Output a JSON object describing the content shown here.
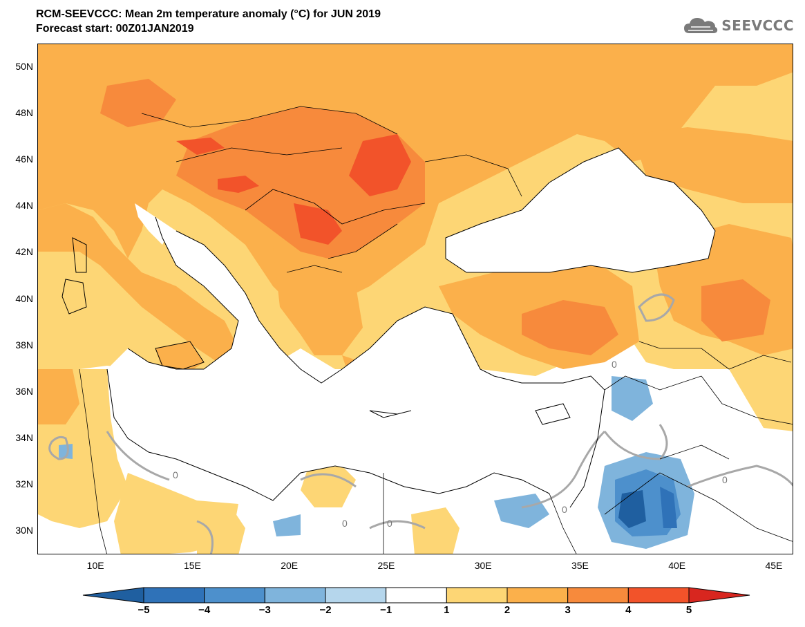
{
  "header": {
    "title": "RCM-SEEVCCC: Mean 2m temperature anomaly (°C) for JUN 2019",
    "subtitle": "Forecast start: 00Z01JAN2019"
  },
  "logo": {
    "text": "SEEVCCC",
    "icon": "cloud-icon"
  },
  "map": {
    "lon_range": [
      7,
      46
    ],
    "lat_range": [
      29,
      51
    ],
    "lat_ticks": [
      {
        "value": 50,
        "label": "50N"
      },
      {
        "value": 48,
        "label": "48N"
      },
      {
        "value": 46,
        "label": "46N"
      },
      {
        "value": 44,
        "label": "44N"
      },
      {
        "value": 42,
        "label": "42N"
      },
      {
        "value": 40,
        "label": "40N"
      },
      {
        "value": 38,
        "label": "38N"
      },
      {
        "value": 36,
        "label": "36N"
      },
      {
        "value": 34,
        "label": "34N"
      },
      {
        "value": 32,
        "label": "32N"
      },
      {
        "value": 30,
        "label": "30N"
      }
    ],
    "lon_ticks": [
      {
        "value": 10,
        "label": "10E"
      },
      {
        "value": 15,
        "label": "15E"
      },
      {
        "value": 20,
        "label": "20E"
      },
      {
        "value": 25,
        "label": "25E"
      },
      {
        "value": 30,
        "label": "30E"
      },
      {
        "value": 35,
        "label": "35E"
      },
      {
        "value": 40,
        "label": "40E"
      },
      {
        "value": 45,
        "label": "45E"
      }
    ],
    "contour_labels": [
      "0",
      "0",
      "0",
      "0",
      "0",
      "0"
    ]
  },
  "colorbar": {
    "levels": [
      "−5",
      "−4",
      "−3",
      "−2",
      "−1",
      "1",
      "2",
      "3",
      "4",
      "5"
    ],
    "colors": [
      "#1f5fa0",
      "#2f72b8",
      "#4d90cc",
      "#7fb4dc",
      "#b5d6ec",
      "#ffffff",
      "#fdd675",
      "#fbb04b",
      "#f78a3c",
      "#f2532a",
      "#d8261f"
    ]
  }
}
